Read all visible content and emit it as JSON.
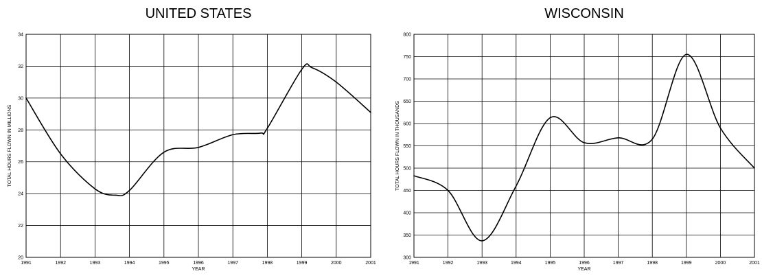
{
  "chart_data": [
    {
      "type": "line",
      "title": "UNITED STATES",
      "xlabel": "YEAR",
      "ylabel": "TOTAL HOURS FLOWN IN MILLIONS",
      "xlim": [
        1991,
        2001
      ],
      "ylim": [
        20,
        34
      ],
      "x_ticks": [
        "1991",
        "1992",
        "1993",
        "1994",
        "1995",
        "1996",
        "1997",
        "1998",
        "1999",
        "2000",
        "2001"
      ],
      "y_ticks": [
        "20",
        "22",
        "24",
        "26",
        "28",
        "30",
        "32",
        "34"
      ],
      "grid": true,
      "series": [
        {
          "points": [
            [
              1991.0,
              30.0
            ],
            [
              1992.0,
              26.5
            ],
            [
              1993.0,
              24.3
            ],
            [
              1993.6,
              23.9
            ],
            [
              1994.0,
              24.2
            ],
            [
              1995.0,
              26.6
            ],
            [
              1996.0,
              26.9
            ],
            [
              1997.0,
              27.7
            ],
            [
              1997.8,
              27.8
            ],
            [
              1998.0,
              28.1
            ],
            [
              1999.0,
              31.8
            ],
            [
              1999.3,
              31.9
            ],
            [
              2000.0,
              31.0
            ],
            [
              2001.0,
              29.1
            ]
          ]
        }
      ]
    },
    {
      "type": "line",
      "title": "WISCONSIN",
      "xlabel": "YEAR",
      "ylabel": "TOTAL HOURS FLOWN IN THOUSANDS",
      "xlim": [
        1991,
        2001
      ],
      "ylim": [
        300,
        800
      ],
      "x_ticks": [
        "1991",
        "1992",
        "1993",
        "1994",
        "1995",
        "1996",
        "1997",
        "1998",
        "1999",
        "2000",
        "2001"
      ],
      "y_ticks": [
        "300",
        "350",
        "400",
        "450",
        "500",
        "550",
        "600",
        "650",
        "700",
        "750",
        "800"
      ],
      "grid": true,
      "series": [
        {
          "points": [
            [
              1991.0,
              483
            ],
            [
              1992.0,
              450
            ],
            [
              1993.0,
              337
            ],
            [
              1994.0,
              460
            ],
            [
              1995.0,
              613
            ],
            [
              1996.0,
              557
            ],
            [
              1997.0,
              568
            ],
            [
              1998.0,
              565
            ],
            [
              1999.0,
              755
            ],
            [
              2000.0,
              590
            ],
            [
              2001.0,
              500
            ]
          ]
        }
      ]
    }
  ]
}
